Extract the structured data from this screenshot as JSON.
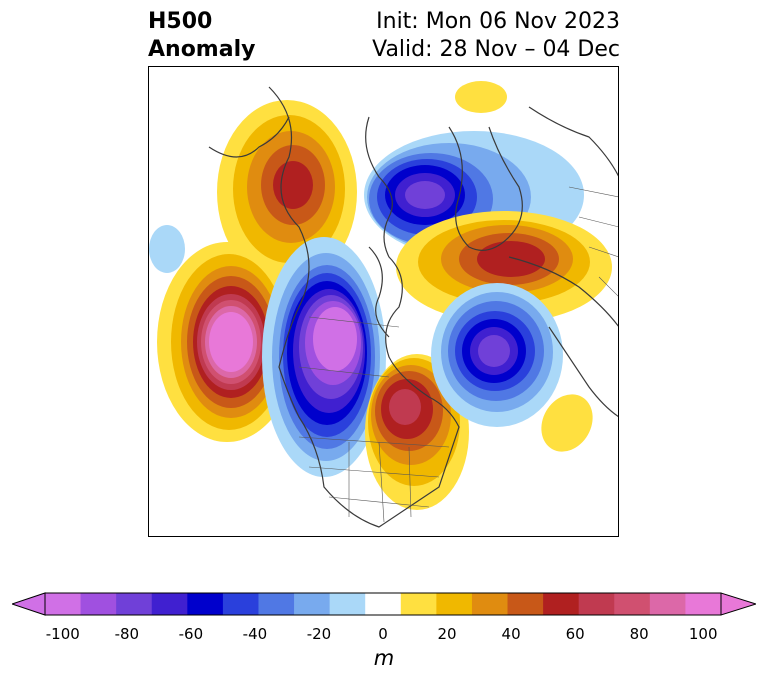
{
  "title": {
    "left_line1": "H500",
    "left_line2": "Anomaly",
    "right_line1": "Init: Mon 06 Nov 2023",
    "right_line2": "Valid: 28 Nov – 04 Dec"
  },
  "colorbar": {
    "units": "m",
    "ticks": [
      "-100",
      "-80",
      "-60",
      "-40",
      "-20",
      "0",
      "20",
      "40",
      "60",
      "80",
      "100"
    ],
    "colors": [
      "#d070e6",
      "#a050e0",
      "#7040d8",
      "#4020d0",
      "#0000cc",
      "#2a40dc",
      "#5078e4",
      "#78aaee",
      "#aad8f8",
      "#ffffff",
      "#ffe040",
      "#f0b800",
      "#e08c10",
      "#c85818",
      "#b02020",
      "#c03a50",
      "#d05070",
      "#dc68a8",
      "#e878d8"
    ],
    "under_color": "#d070e6",
    "over_color": "#e878d8"
  },
  "anomalies": [
    {
      "sign": "positive",
      "region": "Alaska / Bering",
      "peak_m": 60
    },
    {
      "sign": "negative",
      "region": "Arctic / north of Greenland",
      "peak_m": -80
    },
    {
      "sign": "positive",
      "region": "Scandinavia / Europe",
      "peak_m": 60
    },
    {
      "sign": "positive",
      "region": "North Pacific",
      "peak_m": 100
    },
    {
      "sign": "negative",
      "region": "Western Canada / Pacific NW",
      "peak_m": -100
    },
    {
      "sign": "positive",
      "region": "Eastern Canada / Great Lakes",
      "peak_m": 60
    },
    {
      "sign": "negative",
      "region": "North Atlantic",
      "peak_m": -80
    },
    {
      "sign": "positive",
      "region": "Subtropical Atlantic",
      "peak_m": 20
    }
  ]
}
